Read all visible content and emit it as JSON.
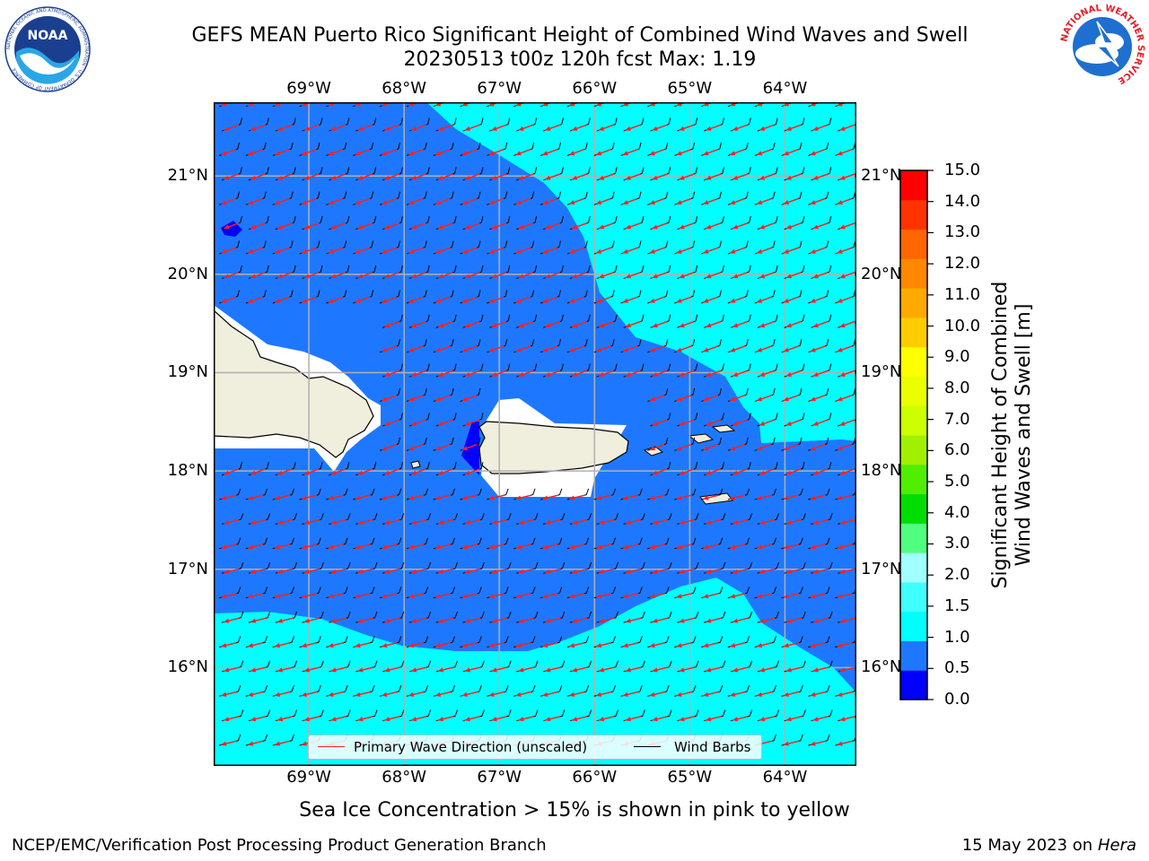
{
  "header": {
    "title_line1": "GEFS MEAN Puerto Rico Significant Height of Combined Wind Waves and Swell",
    "title_line2": "20230513 t00z 120h fcst   Max: 1.19"
  },
  "logos": {
    "noaa": {
      "text": "NOAA",
      "ring_text": "NATIONAL OCEANIC AND ATMOSPHERIC ADMINISTRATION · U.S. DEPARTMENT OF COMMERCE"
    },
    "nws": {
      "ring_text": "NATIONAL WEATHER SERVICE"
    }
  },
  "map": {
    "lon_labels": [
      "69°W",
      "68°W",
      "67°W",
      "66°W",
      "65°W",
      "64°W"
    ],
    "lat_labels": [
      "21°N",
      "20°N",
      "19°N",
      "18°N",
      "17°N",
      "16°N"
    ],
    "lon_values": [
      -69,
      -68,
      -67,
      -66,
      -65,
      -64
    ],
    "lat_values": [
      21,
      20,
      19,
      18,
      17,
      16
    ],
    "extent": {
      "lon_min": -70.0,
      "lon_max": -63.25,
      "lat_min": 15.0,
      "lat_max": 21.75
    },
    "colors": {
      "land": "#f0eedc",
      "bin_0_05": "#0000ff",
      "bin_05_10": "#1e78ff",
      "bin_10_15": "#00ffff",
      "grid": "#b0b0b0",
      "wave_arrow": "#ff2020",
      "wind_barb": "#000000"
    },
    "legend": {
      "wave_label": "Primary Wave Direction (unscaled)",
      "barb_label": "Wind Barbs"
    }
  },
  "colorbar": {
    "label_line1": "Significant Height of Combined",
    "label_line2": "Wind Waves and Swell [m]",
    "ticks": [
      "0.0",
      "0.5",
      "1.0",
      "1.5",
      "2.0",
      "3.0",
      "4.0",
      "5.0",
      "6.0",
      "7.0",
      "8.0",
      "9.0",
      "10.0",
      "11.0",
      "12.0",
      "13.0",
      "14.0",
      "15.0"
    ],
    "colors": [
      "#0000ff",
      "#1e78ff",
      "#00ffff",
      "#40ffff",
      "#a0ffff",
      "#50ff80",
      "#00dd00",
      "#50ee00",
      "#a0f000",
      "#ccff00",
      "#eaff00",
      "#ffff00",
      "#ffcc00",
      "#ffaa00",
      "#ff8800",
      "#ff6600",
      "#ff3300",
      "#ff0000"
    ]
  },
  "notes": {
    "sea_ice": "Sea Ice Concentration > 15% is shown in pink to yellow"
  },
  "footer": {
    "left": "NCEP/EMC/Verification Post Processing Product Generation Branch",
    "right_date": "15 May 2023 on",
    "right_machine": "Hera"
  }
}
